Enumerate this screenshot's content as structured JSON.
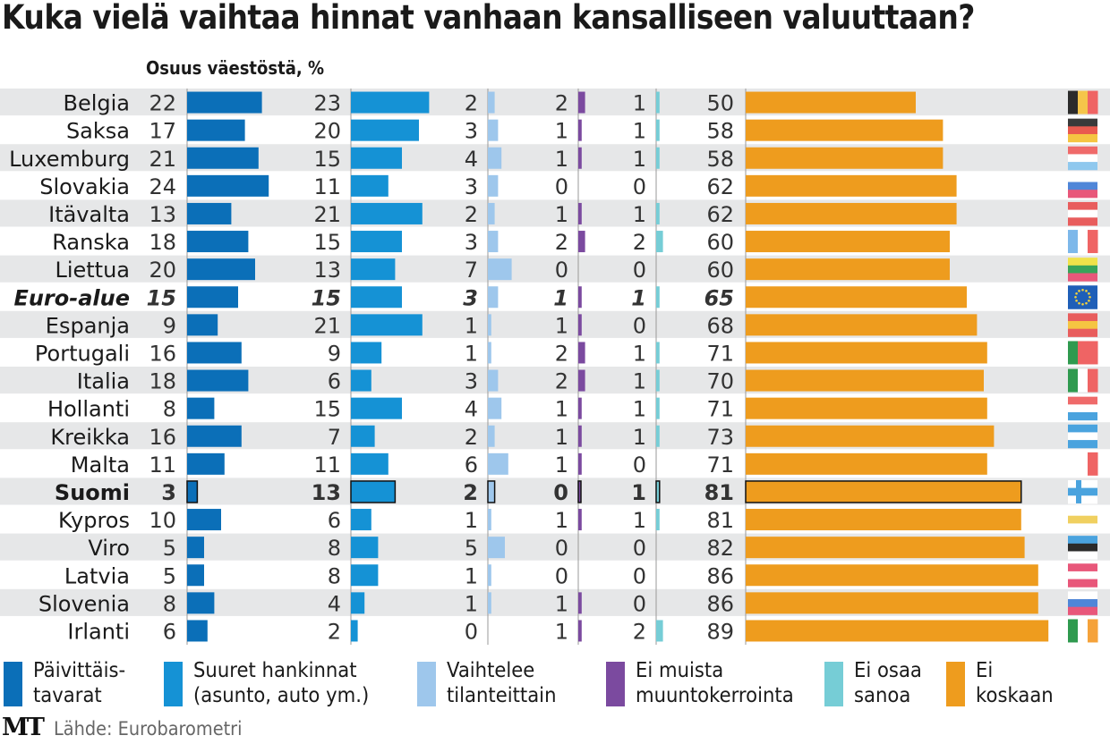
{
  "chart_data": {
    "type": "bar",
    "title": "Kuka vielä vaihtaa hinnat vanhaan kansalliseen valuuttaan?",
    "subtitle": "Osuus väestöstä, %",
    "unit": "%",
    "source": "Lähde: Eurobarometri",
    "publisher": "MT",
    "categories": [
      "Belgia",
      "Saksa",
      "Luxemburg",
      "Slovakia",
      "Itävalta",
      "Ranska",
      "Liettua",
      "Euro-alue",
      "Espanja",
      "Portugali",
      "Italia",
      "Hollanti",
      "Kreikka",
      "Malta",
      "Suomi",
      "Kypros",
      "Viro",
      "Latvia",
      "Slovenia",
      "Irlanti"
    ],
    "highlight": {
      "Euro-alue": "bold-italic",
      "Suomi": "bold-outlined"
    },
    "series": [
      {
        "name": "Päivittäis-\ntavarat",
        "color": "#0b6fb8",
        "values": [
          22,
          17,
          21,
          24,
          13,
          18,
          20,
          15,
          9,
          16,
          18,
          8,
          16,
          11,
          3,
          10,
          5,
          5,
          8,
          6
        ]
      },
      {
        "name": "Suuret hankinnat\n(asunto, auto ym.)",
        "color": "#1592d5",
        "values": [
          23,
          20,
          15,
          11,
          21,
          15,
          13,
          15,
          21,
          9,
          6,
          15,
          7,
          11,
          13,
          6,
          8,
          8,
          4,
          2
        ]
      },
      {
        "name": "Vaihtelee\ntilanteittain",
        "color": "#9ec7ec",
        "values": [
          2,
          3,
          4,
          3,
          2,
          3,
          7,
          3,
          1,
          1,
          3,
          4,
          2,
          6,
          2,
          1,
          5,
          1,
          1,
          0
        ]
      },
      {
        "name": "Ei muista\nmuuntokerrointa",
        "color": "#7b4a9f",
        "values": [
          2,
          1,
          1,
          0,
          1,
          2,
          0,
          1,
          1,
          2,
          2,
          1,
          1,
          1,
          0,
          1,
          0,
          0,
          1,
          1
        ]
      },
      {
        "name": "Ei osaa\nsanoa",
        "color": "#76cdd6",
        "values": [
          1,
          1,
          1,
          0,
          1,
          2,
          0,
          1,
          0,
          1,
          1,
          1,
          1,
          0,
          1,
          1,
          0,
          0,
          0,
          2
        ]
      },
      {
        "name": "Ei\nkoskaan",
        "color": "#ee9c1e",
        "values": [
          50,
          58,
          58,
          62,
          62,
          60,
          60,
          65,
          68,
          71,
          70,
          71,
          73,
          71,
          81,
          81,
          82,
          86,
          86,
          89
        ]
      }
    ],
    "flags": [
      "belgium-flag",
      "germany-flag",
      "luxembourg-flag",
      "slovakia-flag",
      "austria-flag",
      "france-flag",
      "lithuania-flag",
      "eu-flag",
      "spain-flag",
      "portugal-flag",
      "italy-flag",
      "netherlands-flag",
      "greece-flag",
      "malta-flag",
      "finland-flag",
      "cyprus-flag",
      "estonia-flag",
      "latvia-flag",
      "slovenia-flag",
      "ireland-flag"
    ],
    "legend_position": "bottom",
    "grid": false
  },
  "colors": {
    "row_stripe": "#e6e7e8",
    "axis_line": "#999999",
    "text": "#1a1a1a"
  }
}
